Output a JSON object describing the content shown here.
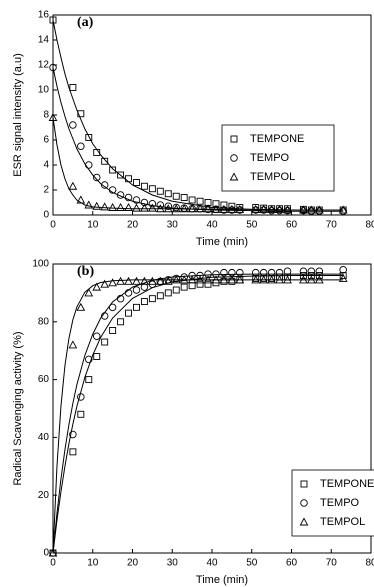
{
  "chart_data": [
    {
      "type": "scatter",
      "panel_label": "(a)",
      "xlabel": "Time (min)",
      "ylabel": "ESR signal intensity (a.u)",
      "xlim": [
        0,
        80
      ],
      "xticks": [
        0,
        10,
        20,
        30,
        40,
        50,
        60,
        70,
        80
      ],
      "ylim": [
        0,
        16
      ],
      "yticks": [
        0,
        2,
        4,
        6,
        8,
        10,
        12,
        14,
        16
      ],
      "legend": "right",
      "x": [
        0,
        5,
        7,
        9,
        11,
        13,
        15,
        17,
        19,
        21,
        23,
        25,
        27,
        29,
        31,
        33,
        35,
        37,
        39,
        41,
        43,
        45,
        47,
        51,
        53,
        55,
        57,
        59,
        63,
        65,
        67,
        73
      ],
      "fit_x": [
        0,
        1,
        2,
        3,
        4,
        5,
        6,
        8,
        10,
        12,
        15,
        20,
        25,
        30,
        40,
        50,
        60,
        73
      ],
      "series": [
        {
          "name": "TEMPONE",
          "marker": "square",
          "color": "#000000",
          "values": [
            15.6,
            10.2,
            8.1,
            6.2,
            5.0,
            4.3,
            3.6,
            3.2,
            2.9,
            2.6,
            2.3,
            2.1,
            1.9,
            1.7,
            1.5,
            1.4,
            1.2,
            1.1,
            1.0,
            0.9,
            0.8,
            0.7,
            0.6,
            0.6,
            0.55,
            0.5,
            0.5,
            0.5,
            0.45,
            0.4,
            0.4,
            0.4
          ],
          "fit": [
            15.6,
            14.0,
            12.6,
            11.3,
            10.2,
            9.3,
            8.4,
            6.9,
            5.7,
            4.8,
            3.7,
            2.4,
            1.6,
            1.1,
            0.6,
            0.45,
            0.4,
            0.4
          ]
        },
        {
          "name": "TEMPO",
          "marker": "circle",
          "color": "#000000",
          "values": [
            11.8,
            7.2,
            5.5,
            4.0,
            3.0,
            2.4,
            2.0,
            1.6,
            1.4,
            1.2,
            1.0,
            0.9,
            0.8,
            0.7,
            0.6,
            0.55,
            0.5,
            0.5,
            0.45,
            0.45,
            0.4,
            0.4,
            0.4,
            0.4,
            0.4,
            0.35,
            0.35,
            0.35,
            0.35,
            0.3,
            0.3,
            0.3
          ],
          "fit": [
            11.8,
            10.3,
            9.0,
            7.9,
            6.9,
            6.1,
            5.3,
            4.1,
            3.2,
            2.5,
            1.8,
            1.1,
            0.75,
            0.55,
            0.4,
            0.35,
            0.3,
            0.3
          ]
        },
        {
          "name": "TEMPOL",
          "marker": "triangle",
          "color": "#000000",
          "values": [
            7.8,
            2.3,
            1.2,
            0.8,
            0.7,
            0.65,
            0.6,
            0.6,
            0.6,
            0.55,
            0.55,
            0.55,
            0.5,
            0.5,
            0.5,
            0.5,
            0.5,
            0.5,
            0.5,
            0.45,
            0.45,
            0.45,
            0.45,
            0.45,
            0.45,
            0.45,
            0.45,
            0.4,
            0.4,
            0.4,
            0.4,
            0.4
          ],
          "fit": [
            7.8,
            5.6,
            4.0,
            2.9,
            2.1,
            1.6,
            1.2,
            0.8,
            0.65,
            0.6,
            0.55,
            0.5,
            0.5,
            0.5,
            0.45,
            0.45,
            0.4,
            0.4
          ]
        }
      ]
    },
    {
      "type": "scatter",
      "panel_label": "(b)",
      "xlabel": "Time (min)",
      "ylabel": "Radical Scavenging activity (%)",
      "xlim": [
        0,
        80
      ],
      "xticks": [
        0,
        10,
        20,
        30,
        40,
        50,
        60,
        70,
        80
      ],
      "ylim": [
        0,
        100
      ],
      "yticks": [
        0,
        20,
        40,
        60,
        80,
        100
      ],
      "legend": "lower right",
      "x": [
        0,
        5,
        7,
        9,
        11,
        13,
        15,
        17,
        19,
        21,
        23,
        25,
        27,
        29,
        31,
        33,
        35,
        37,
        39,
        41,
        43,
        45,
        47,
        51,
        53,
        55,
        57,
        59,
        63,
        65,
        67,
        73
      ],
      "fit_x": [
        0,
        1,
        2,
        3,
        4,
        5,
        6,
        8,
        10,
        12,
        15,
        20,
        25,
        30,
        40,
        50,
        60,
        73
      ],
      "series": [
        {
          "name": "TEMPONE",
          "marker": "square",
          "color": "#000000",
          "values": [
            0,
            35,
            48,
            60,
            68,
            73,
            77,
            80,
            83,
            85,
            87,
            88,
            89,
            90,
            91,
            92,
            92.5,
            93,
            93,
            93.5,
            94,
            94,
            94.5,
            95,
            95,
            95,
            95.5,
            95.5,
            96,
            96,
            96,
            96
          ],
          "fit": [
            0,
            11.3,
            21.2,
            30.0,
            37.8,
            44.6,
            50.7,
            60.7,
            68.5,
            74.6,
            81.3,
            88.1,
            91.8,
            93.8,
            95.4,
            95.8,
            96,
            96
          ]
        },
        {
          "name": "TEMPO",
          "marker": "circle",
          "color": "#000000",
          "values": [
            0,
            41,
            54,
            67,
            75,
            82,
            85,
            88,
            90,
            91,
            92,
            93,
            94,
            94.5,
            95,
            95.5,
            96,
            96,
            96.5,
            96.5,
            97,
            97,
            97,
            97,
            97,
            97,
            97,
            97.5,
            97.5,
            97.5,
            97.5,
            98
          ],
          "fit": [
            0,
            13.8,
            25.6,
            35.7,
            44.4,
            51.8,
            58.2,
            68.3,
            75.7,
            81.3,
            86.9,
            92.0,
            94.4,
            95.5,
            96.3,
            96.5,
            96.5,
            96.5
          ]
        },
        {
          "name": "TEMPOL",
          "marker": "triangle",
          "color": "#000000",
          "values": [
            0,
            72,
            85,
            90,
            92,
            93,
            93.5,
            94,
            94,
            94,
            94,
            94,
            94,
            94,
            94.5,
            94.5,
            94.5,
            94.5,
            94.5,
            94.5,
            94.5,
            94.5,
            94.5,
            94.5,
            94.5,
            94.5,
            94.5,
            94.5,
            94.5,
            94.5,
            94.5,
            95
          ],
          "fit": [
            0,
            30.1,
            50.8,
            64.8,
            74.2,
            80.7,
            85.1,
            90.2,
            92.5,
            93.6,
            94.2,
            94.5,
            94.5,
            94.5,
            94.5,
            94.5,
            94.5,
            94.5
          ]
        }
      ]
    }
  ]
}
